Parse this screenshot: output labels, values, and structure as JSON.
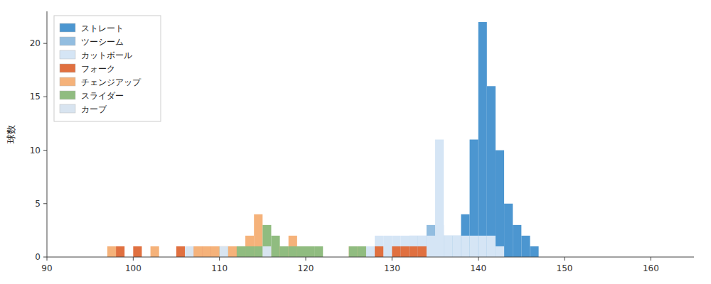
{
  "chart_data": {
    "type": "histogram",
    "ylabel": "球数",
    "xlim": [
      90,
      165
    ],
    "ylim": [
      0,
      23
    ],
    "xticks": [
      90,
      100,
      110,
      120,
      130,
      140,
      150,
      160
    ],
    "yticks": [
      0,
      5,
      10,
      15,
      20
    ],
    "grid": false,
    "legend": "upper left",
    "bins": [
      90,
      91,
      92,
      93,
      94,
      95,
      96,
      97,
      98,
      99,
      100,
      101,
      102,
      103,
      104,
      105,
      106,
      107,
      108,
      109,
      110,
      111,
      112,
      113,
      114,
      115,
      116,
      117,
      118,
      119,
      120,
      121,
      122,
      123,
      124,
      125,
      126,
      127,
      128,
      129,
      130,
      131,
      132,
      133,
      134,
      135,
      136,
      137,
      138,
      139,
      140,
      141,
      142,
      143,
      144,
      145,
      146,
      147,
      148,
      149,
      150,
      151,
      152,
      153,
      154,
      155,
      156,
      157,
      158,
      159,
      160,
      161,
      162,
      163,
      164,
      165
    ],
    "series": [
      {
        "name": "ストレート",
        "color": "#4c96d0",
        "values": [
          0,
          0,
          0,
          0,
          0,
          0,
          0,
          0,
          0,
          0,
          0,
          0,
          0,
          0,
          0,
          0,
          0,
          0,
          0,
          0,
          0,
          0,
          0,
          0,
          0,
          0,
          0,
          0,
          0,
          0,
          0,
          0,
          0,
          0,
          0,
          0,
          0,
          0,
          0,
          0,
          0,
          0,
          0,
          0,
          0,
          1,
          2,
          2,
          4,
          11,
          22,
          16,
          10,
          5,
          3,
          2,
          1,
          0,
          0,
          0,
          0,
          0,
          0,
          0,
          0,
          0,
          0,
          0,
          0,
          0,
          0,
          0,
          0,
          0,
          0
        ]
      },
      {
        "name": "ツーシーム",
        "color": "#92bde0",
        "values": [
          0,
          0,
          0,
          0,
          0,
          0,
          0,
          0,
          0,
          0,
          0,
          0,
          0,
          0,
          0,
          0,
          0,
          0,
          0,
          0,
          0,
          0,
          0,
          0,
          0,
          0,
          0,
          0,
          0,
          0,
          0,
          0,
          0,
          0,
          0,
          0,
          0,
          0,
          0,
          0,
          1,
          1,
          2,
          2,
          3,
          3,
          2,
          2,
          1,
          0,
          0,
          0,
          0,
          0,
          0,
          0,
          0,
          0,
          0,
          0,
          0,
          0,
          0,
          0,
          0,
          0,
          0,
          0,
          0,
          0,
          0,
          0,
          0,
          0,
          0
        ]
      },
      {
        "name": "カットボール",
        "color": "#d5e5f5",
        "values": [
          0,
          0,
          0,
          0,
          0,
          0,
          0,
          0,
          0,
          0,
          0,
          0,
          0,
          0,
          0,
          0,
          0,
          0,
          0,
          0,
          0,
          0,
          0,
          0,
          0,
          0,
          0,
          0,
          0,
          0,
          0,
          0,
          0,
          0,
          0,
          0,
          0,
          1,
          2,
          2,
          2,
          2,
          2,
          2,
          2,
          11,
          2,
          2,
          2,
          2,
          2,
          2,
          1,
          0,
          0,
          0,
          0,
          0,
          0,
          0,
          0,
          0,
          0,
          0,
          0,
          0,
          0,
          0,
          0,
          0,
          0,
          0,
          0,
          0,
          0
        ]
      },
      {
        "name": "フォーク",
        "color": "#e07040",
        "values": [
          0,
          0,
          0,
          0,
          0,
          0,
          0,
          0,
          1,
          0,
          1,
          0,
          0,
          0,
          0,
          1,
          0,
          1,
          1,
          1,
          1,
          1,
          1,
          1,
          0,
          0,
          0,
          0,
          0,
          0,
          0,
          0,
          0,
          0,
          0,
          0,
          0,
          0,
          1,
          0,
          1,
          1,
          1,
          1,
          0,
          0,
          0,
          0,
          0,
          0,
          0,
          0,
          0,
          0,
          0,
          0,
          0,
          0,
          0,
          0,
          0,
          0,
          0,
          0,
          0,
          0,
          0,
          0,
          0,
          0,
          0,
          0,
          0,
          0,
          0
        ]
      },
      {
        "name": "チェンジアップ",
        "color": "#f5b27a",
        "values": [
          0,
          0,
          0,
          0,
          0,
          0,
          0,
          1,
          0,
          0,
          0,
          0,
          1,
          0,
          0,
          0,
          0,
          1,
          1,
          1,
          1,
          1,
          1,
          2,
          4,
          1,
          1,
          1,
          2,
          1,
          1,
          0,
          0,
          0,
          0,
          1,
          1,
          0,
          0,
          0,
          0,
          0,
          0,
          0,
          0,
          0,
          0,
          0,
          0,
          0,
          0,
          0,
          0,
          0,
          0,
          0,
          0,
          0,
          0,
          0,
          0,
          0,
          0,
          0,
          0,
          0,
          0,
          0,
          0,
          0,
          0,
          0,
          0,
          0,
          0
        ]
      },
      {
        "name": "スライダー",
        "color": "#90bc80",
        "values": [
          0,
          0,
          0,
          0,
          0,
          0,
          0,
          0,
          0,
          0,
          0,
          0,
          0,
          0,
          0,
          0,
          0,
          0,
          0,
          0,
          1,
          0,
          1,
          1,
          1,
          3,
          2,
          1,
          1,
          1,
          1,
          1,
          0,
          0,
          0,
          1,
          1,
          0,
          0,
          0,
          0,
          0,
          0,
          0,
          0,
          0,
          0,
          0,
          0,
          0,
          0,
          0,
          0,
          0,
          0,
          0,
          0,
          0,
          0,
          0,
          0,
          0,
          0,
          0,
          0,
          0,
          0,
          0,
          0,
          0,
          0,
          0,
          0,
          0,
          0
        ]
      },
      {
        "name": "カーブ",
        "color": "#d8e4f0",
        "values": [
          0,
          0,
          0,
          0,
          0,
          0,
          0,
          0,
          0,
          0,
          0,
          0,
          0,
          0,
          0,
          0,
          1,
          0,
          0,
          0,
          1,
          0,
          0,
          0,
          0,
          1,
          0,
          0,
          0,
          0,
          0,
          0,
          0,
          0,
          0,
          0,
          0,
          0,
          0,
          0,
          0,
          0,
          0,
          0,
          0,
          0,
          0,
          0,
          0,
          0,
          0,
          0,
          0,
          0,
          0,
          0,
          0,
          0,
          0,
          0,
          0,
          0,
          0,
          0,
          0,
          0,
          0,
          0,
          0,
          0,
          0,
          0,
          0,
          0,
          0
        ]
      }
    ]
  }
}
